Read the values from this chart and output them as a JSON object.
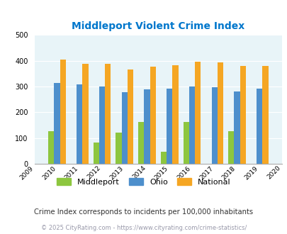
{
  "title": "Middleport Violent Crime Index",
  "years": [
    2009,
    2010,
    2011,
    2012,
    2013,
    2014,
    2015,
    2016,
    2017,
    2018,
    2019,
    2020
  ],
  "bar_years": [
    2010,
    2011,
    2012,
    2013,
    2014,
    2015,
    2016,
    2017,
    2018,
    2019
  ],
  "middleport": [
    127,
    0,
    82,
    122,
    163,
    47,
    163,
    0,
    127,
    0
  ],
  "ohio": [
    315,
    308,
    300,
    277,
    288,
    293,
    300,
    298,
    280,
    293
  ],
  "national": [
    405,
    388,
    388,
    367,
    378,
    383,
    397,
    394,
    380,
    380
  ],
  "color_middleport": "#8dc63f",
  "color_ohio": "#4d8fcc",
  "color_national": "#f5a623",
  "bg_color": "#e8f4f8",
  "title_color": "#0077cc",
  "footnote1": "Crime Index corresponds to incidents per 100,000 inhabitants",
  "footnote2": "© 2025 CityRating.com - https://www.cityrating.com/crime-statistics/",
  "ylim": [
    0,
    500
  ],
  "yticks": [
    0,
    100,
    200,
    300,
    400,
    500
  ]
}
